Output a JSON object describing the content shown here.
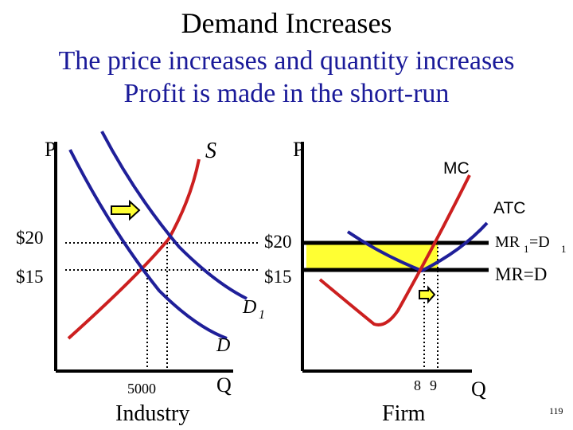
{
  "title": "Demand Increases",
  "subtitle_1": "The price increases and quantity increases",
  "subtitle_2": "Profit is made in the short-run",
  "industry": {
    "axis_p": "P",
    "axis_q": "Q",
    "label": "Industry",
    "supply_label": "S",
    "demand_label": "D",
    "demand_new_label": "D",
    "demand_new_subscript": "1",
    "price_high": "$20",
    "price_low": "$15",
    "quantity": "5000"
  },
  "firm": {
    "axis_p": "P",
    "axis_q": "Q",
    "label": "Firm",
    "mc_label": "MC",
    "atc_label": "ATC",
    "mr1_label_a": "MR",
    "mr1_sub": "1",
    "mr1_label_b": "=D",
    "mr1_sub2": "1",
    "mr_label": "MR=D",
    "price_high": "$20",
    "price_low": "$15",
    "q_low": "8",
    "q_high": "9"
  },
  "slide_number": "119",
  "colors": {
    "supply": "#cc1f1f",
    "demand": "#1f1f99",
    "profit_box": "#ffff33",
    "arrow_fill": "#ffff33",
    "subtitle": "#1a1a99"
  }
}
